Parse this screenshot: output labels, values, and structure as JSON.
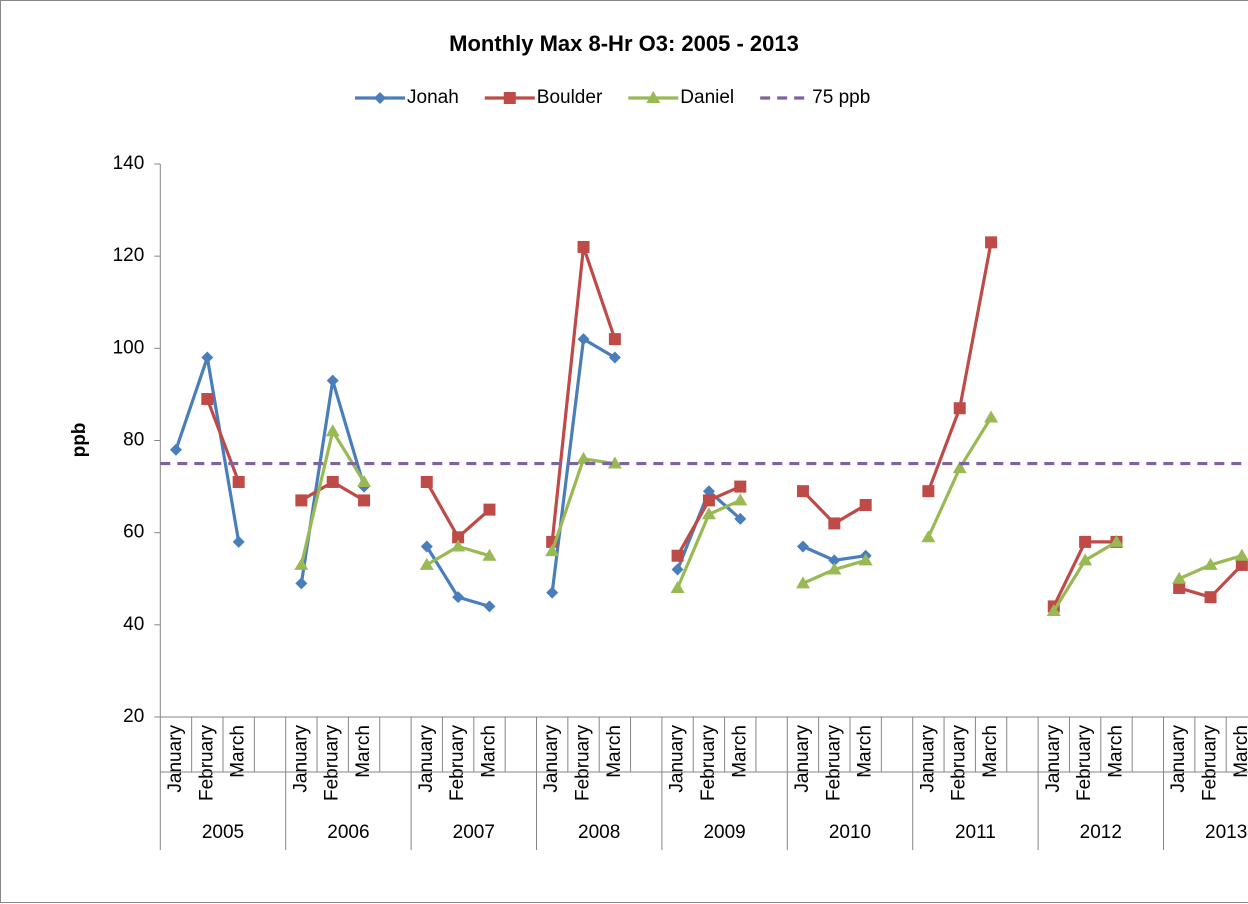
{
  "chart_data": {
    "type": "line",
    "title": "Monthly Max 8-Hr O3: 2005 - 2013",
    "y_label": "ppb",
    "categories": [
      "January",
      "February",
      "March",
      null,
      "January",
      "February",
      "March",
      null,
      "January",
      "February",
      "March",
      null,
      "January",
      "February",
      "March",
      null,
      "January",
      "February",
      "March",
      null,
      "January",
      "February",
      "March",
      null,
      "January",
      "February",
      "March",
      null,
      "January",
      "February",
      "March",
      null,
      "January",
      "February",
      "March",
      null
    ],
    "category_groups": [
      "2005",
      "2006",
      "2007",
      "2008",
      "2009",
      "2010",
      "2011",
      "2012",
      "2013"
    ],
    "series": [
      {
        "name": "Jonah",
        "color": "#4a7ebb",
        "marker": "diamond",
        "values": [
          78,
          98,
          58,
          null,
          49,
          93,
          70,
          null,
          57,
          46,
          44,
          null,
          47,
          102,
          98,
          null,
          52,
          69,
          63,
          null,
          57,
          54,
          55,
          null,
          null,
          null,
          null,
          null,
          null,
          null,
          null,
          null,
          null,
          null,
          null,
          null
        ]
      },
      {
        "name": "Boulder",
        "color": "#be4b48",
        "marker": "square",
        "values": [
          null,
          89,
          71,
          null,
          67,
          71,
          67,
          null,
          71,
          59,
          65,
          null,
          58,
          122,
          102,
          null,
          55,
          67,
          70,
          null,
          69,
          62,
          66,
          null,
          69,
          87,
          123,
          null,
          44,
          58,
          58,
          null,
          48,
          46,
          53,
          null
        ]
      },
      {
        "name": "Daniel",
        "color": "#98b954",
        "marker": "triangle",
        "values": [
          null,
          null,
          null,
          null,
          53,
          82,
          71,
          null,
          53,
          57,
          55,
          null,
          56,
          76,
          75,
          null,
          48,
          64,
          67,
          null,
          49,
          52,
          54,
          null,
          59,
          74,
          85,
          null,
          43,
          54,
          58,
          null,
          50,
          53,
          55,
          null
        ]
      },
      {
        "name": "75 ppb",
        "color": "#7f63a1",
        "marker": "none",
        "dashed": true,
        "values": [
          75,
          75,
          75,
          75,
          75,
          75,
          75,
          75,
          75,
          75,
          75,
          75,
          75,
          75,
          75,
          75,
          75,
          75,
          75,
          75,
          75,
          75,
          75,
          75,
          75,
          75,
          75,
          75,
          75,
          75,
          75,
          75,
          75,
          75,
          75,
          75
        ]
      }
    ],
    "ylim": [
      20,
      140
    ],
    "yticks": [
      20,
      40,
      60,
      80,
      100,
      120,
      140
    ],
    "legend": "top"
  }
}
